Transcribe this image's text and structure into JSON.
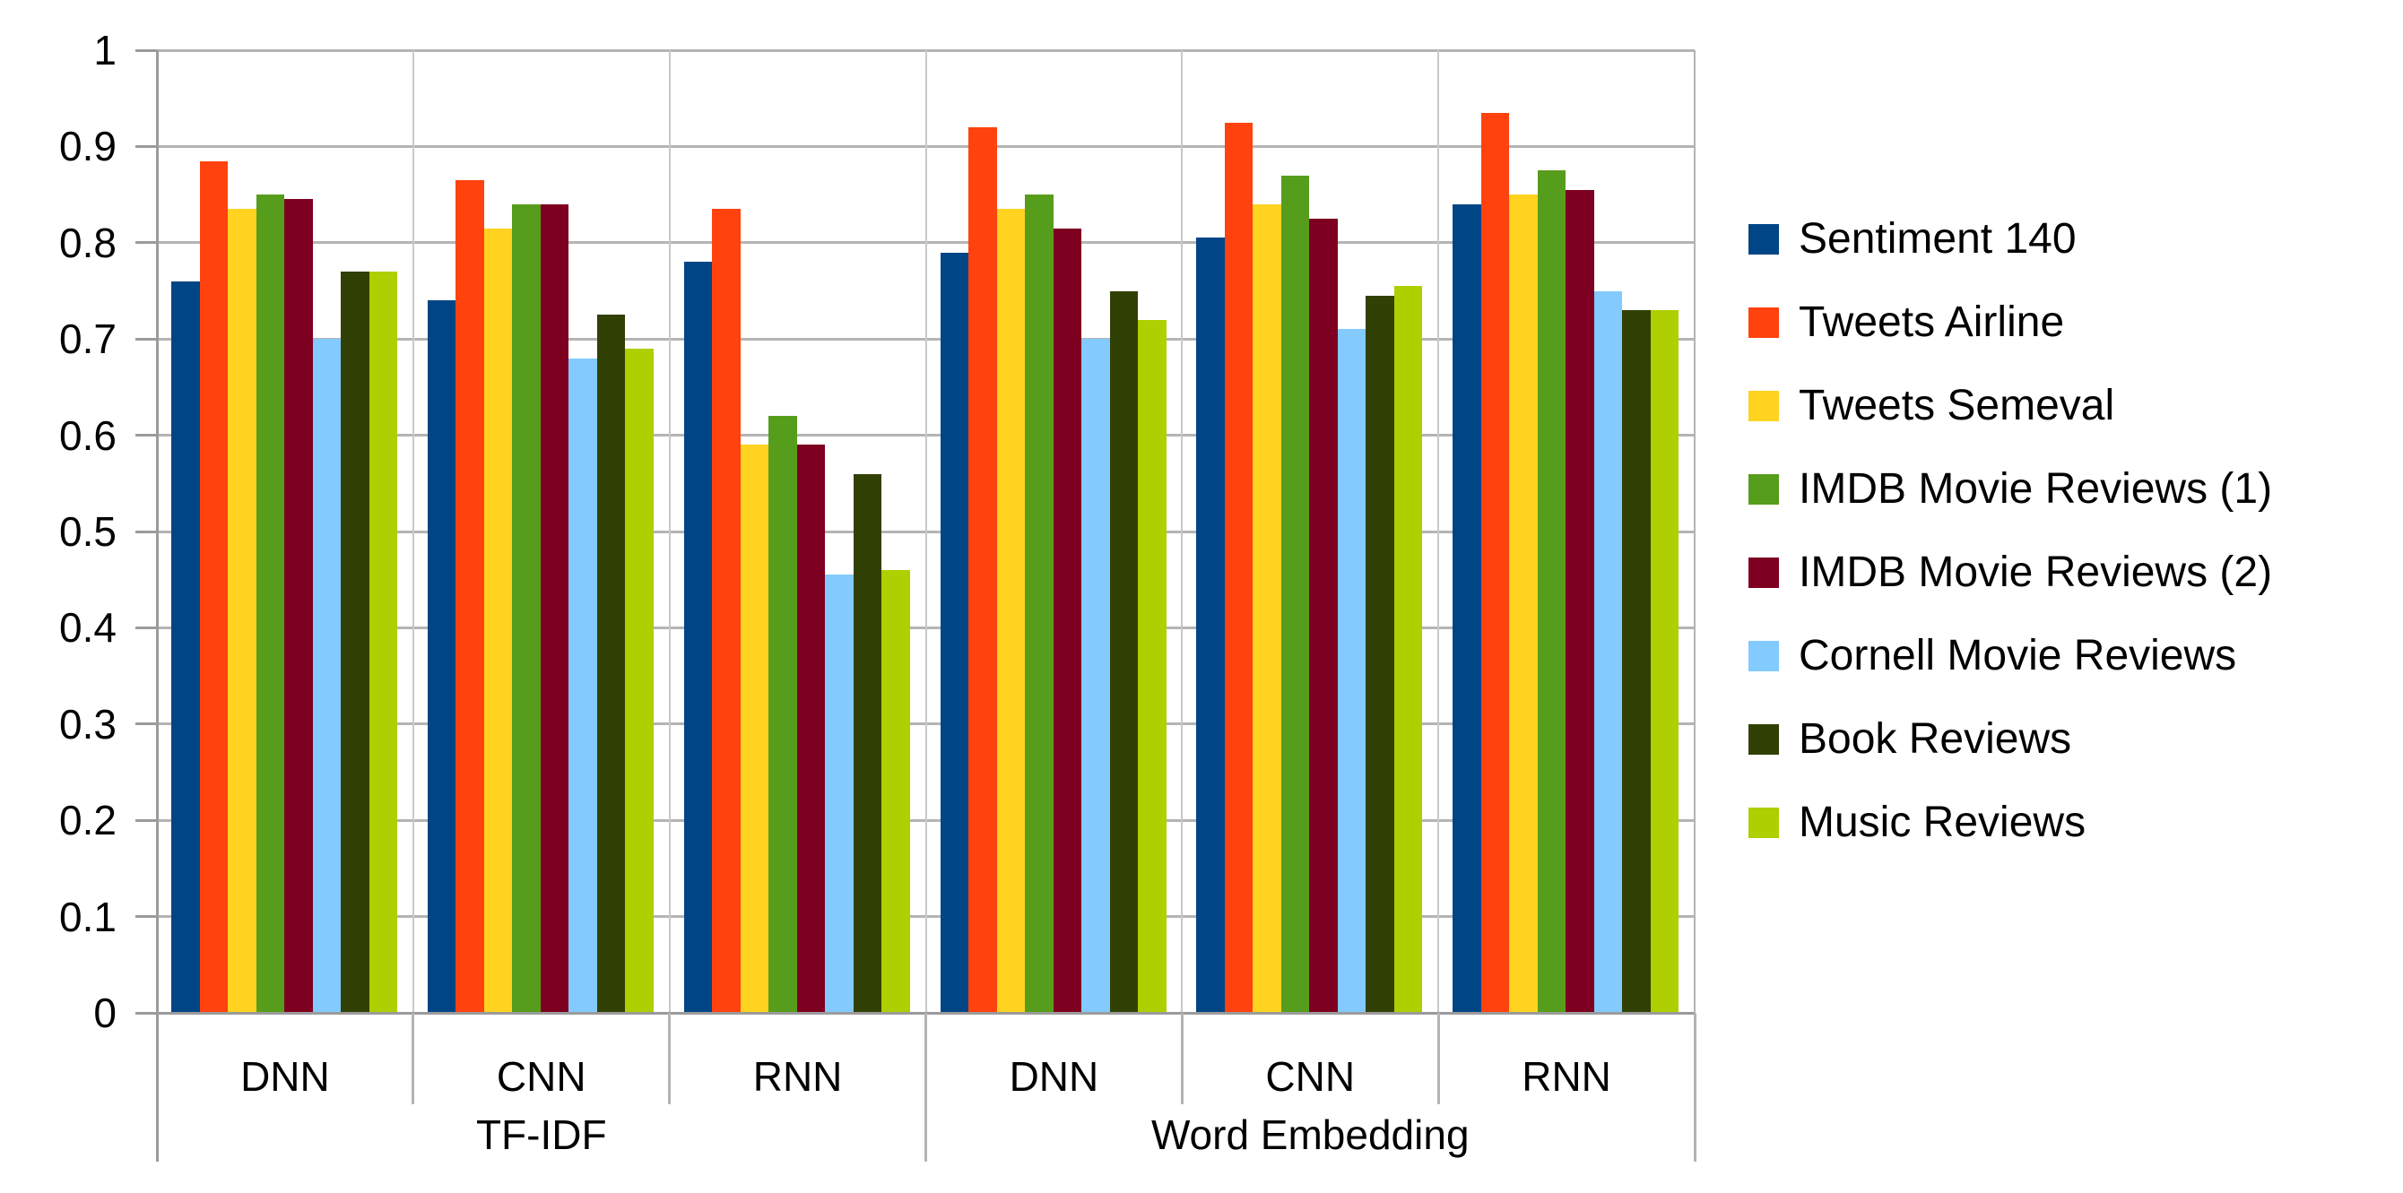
{
  "chart_data": {
    "type": "bar",
    "title": "",
    "xlabel": "",
    "ylabel": "",
    "ylim": [
      0,
      1
    ],
    "grid": true,
    "legend_position": "right",
    "y_ticks": [
      {
        "label": "1",
        "value": 1.0
      },
      {
        "label": "0.9",
        "value": 0.9
      },
      {
        "label": "0.8",
        "value": 0.8
      },
      {
        "label": "0.7",
        "value": 0.7
      },
      {
        "label": "0.6",
        "value": 0.6
      },
      {
        "label": "0.5",
        "value": 0.5
      },
      {
        "label": "0.4",
        "value": 0.4
      },
      {
        "label": "0.3",
        "value": 0.3
      },
      {
        "label": "0.2",
        "value": 0.2
      },
      {
        "label": "0.1",
        "value": 0.1
      },
      {
        "label": "0",
        "value": 0.0
      }
    ],
    "x_groups_level1": [
      "DNN",
      "CNN",
      "RNN",
      "DNN",
      "CNN",
      "RNN"
    ],
    "x_groups_level2": [
      {
        "label": "TF-IDF",
        "span": 3
      },
      {
        "label": "Word Embedding",
        "span": 3
      }
    ],
    "series": [
      {
        "name": "Sentiment 140",
        "color": "#004586",
        "values": [
          0.76,
          0.74,
          0.78,
          0.79,
          0.805,
          0.84
        ]
      },
      {
        "name": "Tweets Airline",
        "color": "#FF420E",
        "values": [
          0.885,
          0.865,
          0.835,
          0.92,
          0.925,
          0.935
        ]
      },
      {
        "name": "Tweets Semeval",
        "color": "#FFD320",
        "values": [
          0.835,
          0.815,
          0.59,
          0.835,
          0.84,
          0.85
        ]
      },
      {
        "name": "IMDB Movie Reviews (1)",
        "color": "#579D1C",
        "values": [
          0.85,
          0.84,
          0.62,
          0.85,
          0.87,
          0.875
        ]
      },
      {
        "name": "IMDB Movie Reviews (2)",
        "color": "#7E0021",
        "values": [
          0.845,
          0.84,
          0.59,
          0.815,
          0.825,
          0.855
        ]
      },
      {
        "name": "Cornell Movie Reviews",
        "color": "#83CAFF",
        "values": [
          0.7,
          0.68,
          0.455,
          0.7,
          0.71,
          0.75
        ]
      },
      {
        "name": "Book Reviews",
        "color": "#314004",
        "values": [
          0.77,
          0.725,
          0.56,
          0.75,
          0.745,
          0.73
        ]
      },
      {
        "name": "Music Reviews",
        "color": "#AECF00",
        "values": [
          0.77,
          0.69,
          0.46,
          0.72,
          0.755,
          0.73
        ]
      }
    ]
  }
}
